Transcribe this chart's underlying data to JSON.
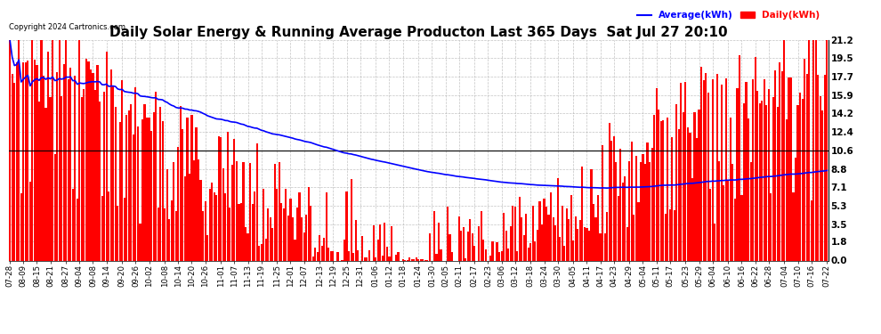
{
  "title": "Daily Solar Energy & Running Average Producton Last 365 Days  Sat Jul 27 20:10",
  "copyright": "Copyright 2024 Cartronics.com",
  "ylabel_right_ticks": [
    0.0,
    1.8,
    3.5,
    5.3,
    7.1,
    8.8,
    10.6,
    12.4,
    14.2,
    15.9,
    17.7,
    19.5,
    21.2
  ],
  "ymax": 21.2,
  "ymin": 0.0,
  "bar_color": "#ff0000",
  "avg_line_color": "#0000ff",
  "overall_avg_line_color": "#000000",
  "background_color": "#ffffff",
  "grid_color": "#aaaaaa",
  "title_fontsize": 11,
  "legend_avg_label": "Average(kWh)",
  "legend_daily_label": "Daily(kWh)",
  "n_days": 365,
  "overall_avg": 10.6,
  "x_tick_labels": [
    "07-28",
    "08-09",
    "08-15",
    "08-21",
    "08-27",
    "09-04",
    "09-08",
    "09-14",
    "09-20",
    "09-26",
    "10-02",
    "10-08",
    "10-14",
    "10-20",
    "10-26",
    "11-01",
    "11-07",
    "11-13",
    "11-19",
    "11-25",
    "12-01",
    "12-07",
    "12-13",
    "12-19",
    "12-25",
    "12-31",
    "01-06",
    "01-12",
    "01-18",
    "01-24",
    "01-30",
    "02-05",
    "02-11",
    "02-17",
    "02-23",
    "03-06",
    "03-12",
    "03-18",
    "03-24",
    "03-30",
    "04-05",
    "04-11",
    "04-17",
    "04-23",
    "04-29",
    "05-04",
    "05-11",
    "05-17",
    "05-23",
    "05-29",
    "06-04",
    "06-10",
    "06-16",
    "06-22",
    "06-28",
    "07-04",
    "07-10",
    "07-16",
    "07-22"
  ]
}
